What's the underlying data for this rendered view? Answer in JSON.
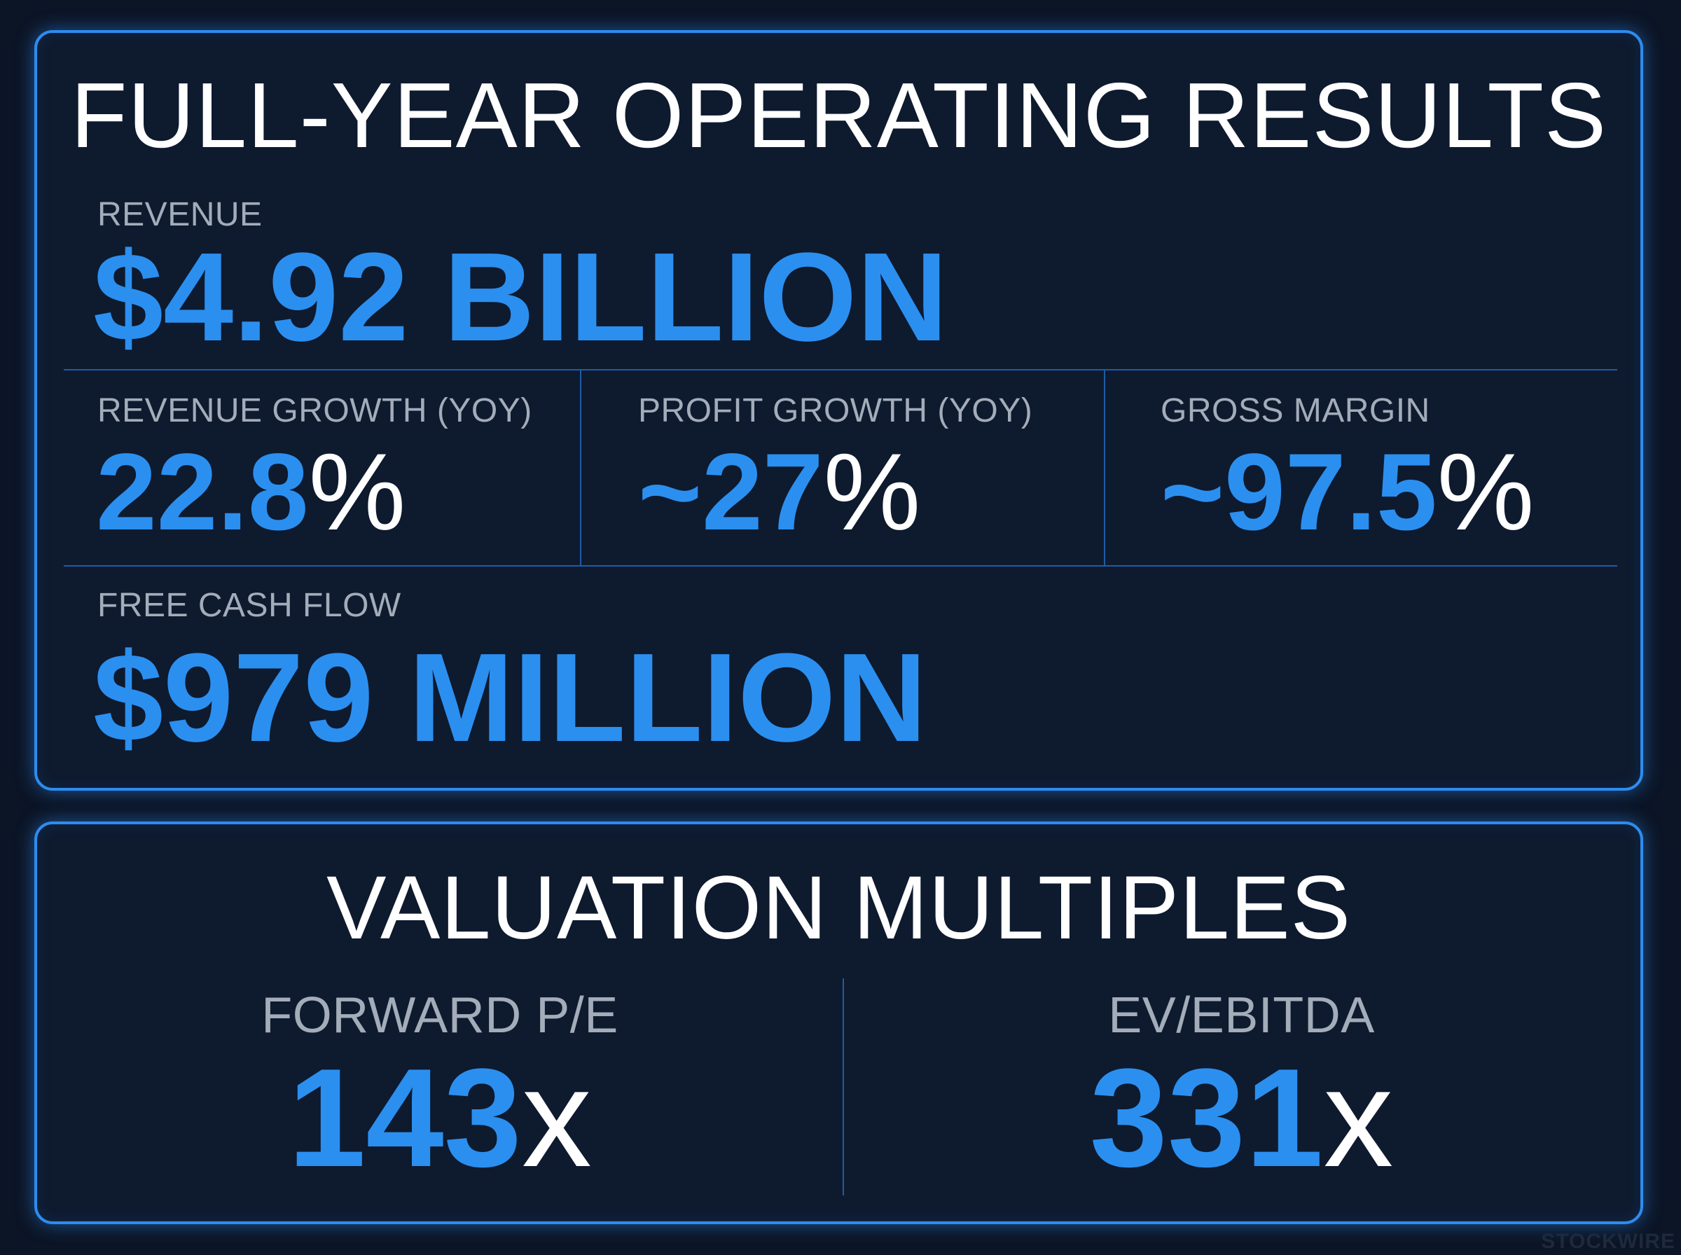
{
  "operating_results": {
    "title": "FULL-YEAR OPERATING RESULTS",
    "revenue": {
      "label": "REVENUE",
      "value": "$4.92 BILLION"
    },
    "revenue_growth": {
      "label": "REVENUE GROWTH (YOY)",
      "value": "22.8",
      "suffix": "%"
    },
    "profit_growth": {
      "label": "PROFIT GROWTH (YOY)",
      "value": "~27",
      "suffix": "%"
    },
    "gross_margin": {
      "label": "GROSS MARGIN",
      "value": "~97.5",
      "suffix": "%"
    },
    "free_cash_flow": {
      "label": "FREE CASH FLOW",
      "value": "$979 MILLION"
    }
  },
  "valuation_multiples": {
    "title": "VALUATION MULTIPLES",
    "forward_pe": {
      "label": "FORWARD P/E",
      "value": "143",
      "suffix": "x"
    },
    "ev_ebitda": {
      "label": "EV/EBITDA",
      "value": "331",
      "suffix": "x"
    }
  },
  "watermark": "STOCKWIRE",
  "colors": {
    "background": "#0c1526",
    "panel": "#0e1a2e",
    "accent": "#2b8ff0",
    "border": "#2d8cf0",
    "label": "#a3acb9"
  }
}
